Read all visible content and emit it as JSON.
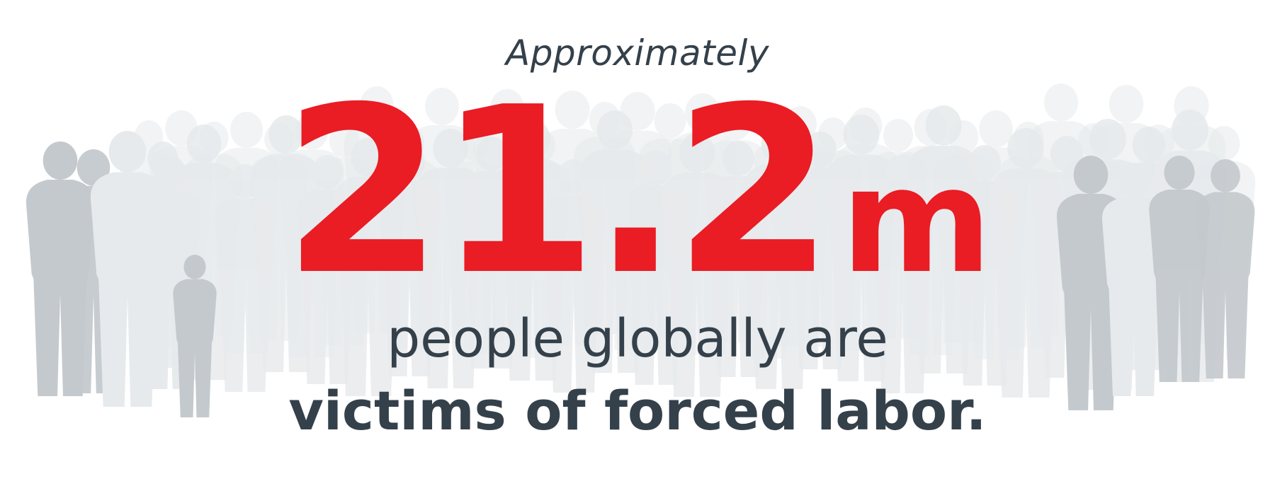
{
  "statistic": {
    "intro": "Approximately",
    "number": "21.2",
    "unit": "m",
    "line1": "people globally are",
    "line2": "victims of forced labor."
  },
  "colors": {
    "accent": "#ea1c24",
    "text": "#34404a",
    "silhouette_front": "#c4c9cd",
    "silhouette_back": "#e7eaec",
    "background": "#ffffff"
  },
  "background_art": {
    "icon": "crowd-silhouette-icon"
  }
}
